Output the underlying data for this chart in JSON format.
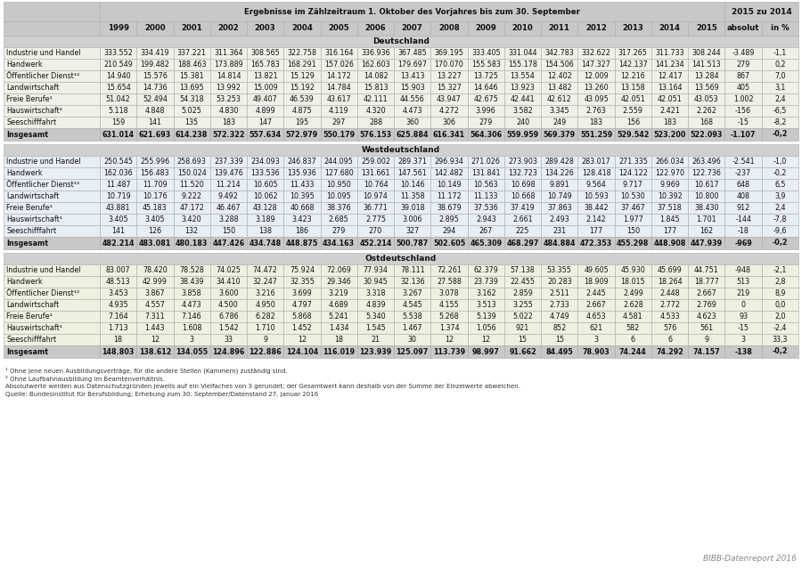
{
  "header_main": "Ergebnisse im Zählzeitraum 1. Oktober des Vorjahres bis zum 30. September",
  "header_right": "2015 zu 2014",
  "years": [
    "1999",
    "2000",
    "2001",
    "2002",
    "2003",
    "2004",
    "2005",
    "2006",
    "2007",
    "2008",
    "2009",
    "2010",
    "2011",
    "2012",
    "2013",
    "2014",
    "2015",
    "absolut",
    "in %"
  ],
  "sections": [
    {
      "name": "Deutschland",
      "bg": "#f0f0e8",
      "rows": [
        [
          "Industrie und Handel",
          "333.552",
          "334.419",
          "337.221",
          "311.364",
          "308.565",
          "322.758",
          "316.164",
          "336.936",
          "367.485",
          "369.195",
          "333.405",
          "331.044",
          "342.783",
          "332.622",
          "317.265",
          "311.733",
          "308.244",
          "-3.489",
          "-1,1"
        ],
        [
          "Handwerk",
          "210.549",
          "199.482",
          "188.463",
          "173.889",
          "165.783",
          "168.291",
          "157.026",
          "162.603",
          "179.697",
          "170.070",
          "155.583",
          "155.178",
          "154.506",
          "147.327",
          "142.137",
          "141.234",
          "141.513",
          "279",
          "0,2"
        ],
        [
          "Öffentlicher Dienst¹²",
          "14.940",
          "15.576",
          "15.381",
          "14.814",
          "13.821",
          "15.129",
          "14.172",
          "14.082",
          "13.413",
          "13.227",
          "13.725",
          "13.554",
          "12.402",
          "12.009",
          "12.216",
          "12.417",
          "13.284",
          "867",
          "7,0"
        ],
        [
          "Landwirtschaft",
          "15.654",
          "14.736",
          "13.695",
          "13.992",
          "15.009",
          "15.192",
          "14.784",
          "15.813",
          "15.903",
          "15.327",
          "14.646",
          "13.923",
          "13.482",
          "13.260",
          "13.158",
          "13.164",
          "13.569",
          "405",
          "3,1"
        ],
        [
          "Freie Berufe¹",
          "51.042",
          "52.494",
          "54.318",
          "53.253",
          "49.407",
          "46.539",
          "43.617",
          "42.111",
          "44.556",
          "43.947",
          "42.675",
          "42.441",
          "42.612",
          "43.095",
          "42.051",
          "42.051",
          "43.053",
          "1.002",
          "2,4"
        ],
        [
          "Hauswirtschaft¹",
          "5.118",
          "4.848",
          "5.025",
          "4.830",
          "4.899",
          "4.875",
          "4.119",
          "4.320",
          "4.473",
          "4.272",
          "3.996",
          "3.582",
          "3.345",
          "2.763",
          "2.559",
          "2.421",
          "2.262",
          "-156",
          "-6,5"
        ],
        [
          "Seeschifffahrt",
          "159",
          "141",
          "135",
          "183",
          "147",
          "195",
          "297",
          "288",
          "360",
          "306",
          "279",
          "240",
          "249",
          "183",
          "156",
          "183",
          "168",
          "-15",
          "-8,2"
        ],
        [
          "Insgesamt",
          "631.014",
          "621.693",
          "614.238",
          "572.322",
          "557.634",
          "572.979",
          "550.179",
          "576.153",
          "625.884",
          "616.341",
          "564.306",
          "559.959",
          "569.379",
          "551.259",
          "529.542",
          "523.200",
          "522.093",
          "-1.107",
          "-0,2"
        ]
      ],
      "bold_rows": [
        7
      ]
    },
    {
      "name": "Westdeutschland",
      "bg": "#e8eef5",
      "rows": [
        [
          "Industrie und Handel",
          "250.545",
          "255.996",
          "258.693",
          "237.339",
          "234.093",
          "246.837",
          "244.095",
          "259.002",
          "289.371",
          "296.934",
          "271.026",
          "273.903",
          "289.428",
          "283.017",
          "271.335",
          "266.034",
          "263.496",
          "-2.541",
          "-1,0"
        ],
        [
          "Handwerk",
          "162.036",
          "156.483",
          "150.024",
          "139.476",
          "133.536",
          "135.936",
          "127.680",
          "131.661",
          "147.561",
          "142.482",
          "131.841",
          "132.723",
          "134.226",
          "128.418",
          "124.122",
          "122.970",
          "122.736",
          "-237",
          "-0,2"
        ],
        [
          "Öffentlicher Dienst¹²",
          "11.487",
          "11.709",
          "11.520",
          "11.214",
          "10.605",
          "11.433",
          "10.950",
          "10.764",
          "10.146",
          "10.149",
          "10.563",
          "10.698",
          "9.891",
          "9.564",
          "9.717",
          "9.969",
          "10.617",
          "648",
          "6,5"
        ],
        [
          "Landwirtschaft",
          "10.719",
          "10.176",
          "9.222",
          "9.492",
          "10.062",
          "10.395",
          "10.095",
          "10.974",
          "11.358",
          "11.172",
          "11.133",
          "10.668",
          "10.749",
          "10.593",
          "10.530",
          "10.392",
          "10.800",
          "408",
          "3,9"
        ],
        [
          "Freie Berufe¹",
          "43.881",
          "45.183",
          "47.172",
          "46.467",
          "43.128",
          "40.668",
          "38.376",
          "36.771",
          "39.018",
          "38.679",
          "37.536",
          "37.419",
          "37.863",
          "38.442",
          "37.467",
          "37.518",
          "38.430",
          "912",
          "2,4"
        ],
        [
          "Hauswirtschaft¹",
          "3.405",
          "3.405",
          "3.420",
          "3.288",
          "3.189",
          "3.423",
          "2.685",
          "2.775",
          "3.006",
          "2.895",
          "2.943",
          "2.661",
          "2.493",
          "2.142",
          "1.977",
          "1.845",
          "1.701",
          "-144",
          "-7,8"
        ],
        [
          "Seeschifffahrt",
          "141",
          "126",
          "132",
          "150",
          "138",
          "186",
          "279",
          "270",
          "327",
          "294",
          "267",
          "225",
          "231",
          "177",
          "150",
          "177",
          "162",
          "-18",
          "-9,6"
        ],
        [
          "Insgesamt",
          "482.214",
          "483.081",
          "480.183",
          "447.426",
          "434.748",
          "448.875",
          "434.163",
          "452.214",
          "500.787",
          "502.605",
          "465.309",
          "468.297",
          "484.884",
          "472.353",
          "455.298",
          "448.908",
          "447.939",
          "-969",
          "-0,2"
        ]
      ],
      "bold_rows": [
        7
      ]
    },
    {
      "name": "Ostdeutschland",
      "bg": "#f0f0e0",
      "rows": [
        [
          "Industrie und Handel",
          "83.007",
          "78.420",
          "78.528",
          "74.025",
          "74.472",
          "75.924",
          "72.069",
          "77.934",
          "78.111",
          "72.261",
          "62.379",
          "57.138",
          "53.355",
          "49.605",
          "45.930",
          "45.699",
          "44.751",
          "-948",
          "-2,1"
        ],
        [
          "Handwerk",
          "48.513",
          "42.999",
          "38.439",
          "34.410",
          "32.247",
          "32.355",
          "29.346",
          "30.945",
          "32.136",
          "27.588",
          "23.739",
          "22.455",
          "20.283",
          "18.909",
          "18.015",
          "18.264",
          "18.777",
          "513",
          "2,8"
        ],
        [
          "Öffentlicher Dienst¹²",
          "3.453",
          "3.867",
          "3.858",
          "3.600",
          "3.216",
          "3.699",
          "3.219",
          "3.318",
          "3.267",
          "3.078",
          "3.162",
          "2.859",
          "2.511",
          "2.445",
          "2.499",
          "2.448",
          "2.667",
          "219",
          "8,9"
        ],
        [
          "Landwirtschaft",
          "4.935",
          "4.557",
          "4.473",
          "4.500",
          "4.950",
          "4.797",
          "4.689",
          "4.839",
          "4.545",
          "4.155",
          "3.513",
          "3.255",
          "2.733",
          "2.667",
          "2.628",
          "2.772",
          "2.769",
          "0",
          "0,0"
        ],
        [
          "Freie Berufe¹",
          "7.164",
          "7.311",
          "7.146",
          "6.786",
          "6.282",
          "5.868",
          "5.241",
          "5.340",
          "5.538",
          "5.268",
          "5.139",
          "5.022",
          "4.749",
          "4.653",
          "4.581",
          "4.533",
          "4.623",
          "93",
          "2,0"
        ],
        [
          "Hauswirtschaft¹",
          "1.713",
          "1.443",
          "1.608",
          "1.542",
          "1.710",
          "1.452",
          "1.434",
          "1.545",
          "1.467",
          "1.374",
          "1.056",
          "921",
          "852",
          "621",
          "582",
          "576",
          "561",
          "-15",
          "-2,4"
        ],
        [
          "Seeschifffahrt",
          "18",
          "12",
          "3",
          "33",
          "9",
          "12",
          "18",
          "21",
          "30",
          "12",
          "12",
          "15",
          "15",
          "3",
          "6",
          "6",
          "9",
          "3",
          "33,3"
        ],
        [
          "Insgesamt",
          "148.803",
          "138.612",
          "134.055",
          "124.896",
          "122.886",
          "124.104",
          "116.019",
          "123.939",
          "125.097",
          "113.739",
          "98.997",
          "91.662",
          "84.495",
          "78.903",
          "74.244",
          "74.292",
          "74.157",
          "-138",
          "-0,2"
        ]
      ],
      "bold_rows": [
        7
      ]
    }
  ],
  "footnotes": [
    "¹ Ohne jene neuen Ausbildungsverträge, für die andere Stellen (Kammern) zuständig sind.",
    "² Ohne Laufbahnausbildung im Beamtenverhältnis.",
    "Absolutwerte werden aus Datenschutzgründen jeweils auf ein Vielfaches von 3 gerundet; der Gesamtwert kann deshalb von der Summe der Einzelwerte abweichen.",
    "Quelle: Bundesinstitut für Berufsbildung; Erhebung zum 30. September/Datenstand 27. Januar 2016"
  ],
  "watermark": "BIBB-Datenreport 2016",
  "bg_header": "#c8c8c8",
  "bg_section_label": "#d0d0d0",
  "bg_insgesamt": "#c8c8c8",
  "border_color": "#aaaaaa",
  "text_dark": "#1a1a1a"
}
